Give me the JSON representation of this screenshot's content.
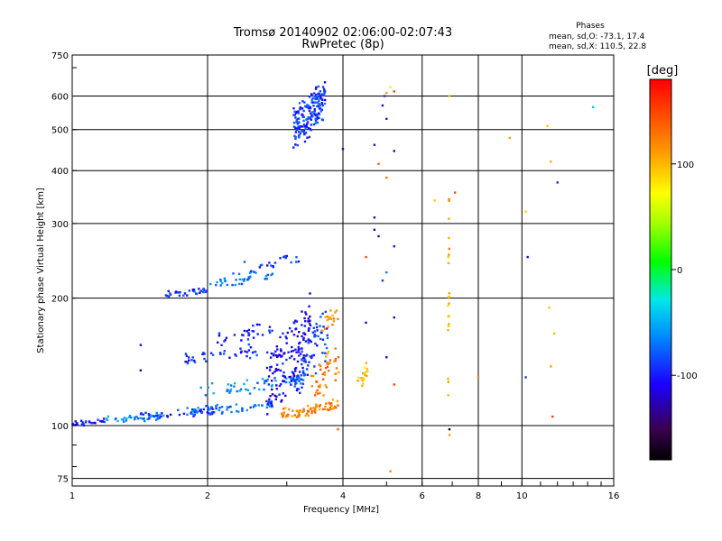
{
  "chart_data": {
    "type": "scatter",
    "title": "Tromsø 20140902 02:06:00-02:07:43",
    "subtitle": "RwPretec (8p)",
    "stats": {
      "title": "Phases",
      "line1": "mean, sd,O: -73.1, 17.4",
      "line2": "mean, sd,X: 110.5, 22.8"
    },
    "xlabel": "Frequency [MHz]",
    "ylabel": "Stationary phase Virtual Height [km]",
    "xscale": "log",
    "yscale": "log",
    "xlim": [
      1,
      16
    ],
    "ylim": [
      72,
      750
    ],
    "xticks": [
      1,
      2,
      4,
      6,
      8,
      10,
      16
    ],
    "yticks": [
      75,
      100,
      200,
      300,
      400,
      500,
      600,
      750
    ],
    "grid": true,
    "colorbar": {
      "label": "[deg]",
      "range": [
        -180,
        180
      ],
      "ticks": [
        100,
        0,
        -100
      ]
    },
    "series": [
      {
        "mode": "O",
        "clusters": [
          {
            "x": [
              1.0,
              1.18
            ],
            "y": [
              100,
              103
            ],
            "n": 28,
            "phase": -95,
            "spread": 0.04
          },
          {
            "x": [
              1.18,
              1.6
            ],
            "y": [
              102,
              107
            ],
            "n": 45,
            "phase": -60,
            "spread": 0.05
          },
          {
            "x": [
              1.4,
              2.1
            ],
            "y": [
              104,
              110
            ],
            "n": 40,
            "phase": -100,
            "spread": 0.05
          },
          {
            "x": [
              1.8,
              2.8
            ],
            "y": [
              106,
              114
            ],
            "n": 55,
            "phase": -75,
            "spread": 0.05
          },
          {
            "x": [
              1.55,
              2.0
            ],
            "y": [
              200,
              212
            ],
            "n": 35,
            "phase": -90,
            "spread": 0.03
          },
          {
            "x": [
              2.0,
              2.8
            ],
            "y": [
              210,
              238
            ],
            "n": 40,
            "phase": -70,
            "spread": 0.03
          },
          {
            "x": [
              2.4,
              3.2
            ],
            "y": [
              230,
              255
            ],
            "n": 20,
            "phase": -95,
            "spread": 0.03
          },
          {
            "x": [
              1.9,
              3.3
            ],
            "y": [
              118,
              132
            ],
            "n": 55,
            "phase": -65,
            "spread": 0.07
          },
          {
            "x": [
              1.75,
              2.6
            ],
            "y": [
              140,
              155
            ],
            "n": 40,
            "phase": -95,
            "spread": 0.06
          },
          {
            "x": [
              2.1,
              2.8
            ],
            "y": [
              155,
              175
            ],
            "n": 30,
            "phase": -105,
            "spread": 0.05
          },
          {
            "x": [
              2.7,
              3.4
            ],
            "y": [
              105,
              205
            ],
            "n": 140,
            "phase": -110,
            "spread": 0.12
          },
          {
            "x": [
              3.1,
              3.7
            ],
            "y": [
              115,
              190
            ],
            "n": 80,
            "phase": -90,
            "spread": 0.12
          },
          {
            "x": [
              3.1,
              3.65
            ],
            "y": [
              460,
              640
            ],
            "n": 170,
            "phase": -90,
            "spread": 0.2
          }
        ]
      },
      {
        "mode": "X",
        "clusters": [
          {
            "x": [
              2.9,
              3.9
            ],
            "y": [
              104,
              114
            ],
            "n": 70,
            "phase": 120,
            "spread": 0.06
          },
          {
            "x": [
              3.4,
              3.95
            ],
            "y": [
              112,
              160
            ],
            "n": 45,
            "phase": 125,
            "spread": 0.1
          },
          {
            "x": [
              3.6,
              3.9
            ],
            "y": [
              160,
              195
            ],
            "n": 18,
            "phase": 115,
            "spread": 0.05
          },
          {
            "x": [
              4.3,
              4.55
            ],
            "y": [
              120,
              140
            ],
            "n": 18,
            "phase": 95,
            "spread": 0.08
          },
          {
            "x": [
              6.85,
              6.9
            ],
            "y": [
              100,
              440
            ],
            "n": 22,
            "phase": 105,
            "spread": 0.02
          }
        ]
      }
    ],
    "points": [
      {
        "x": 1.42,
        "y": 155,
        "phase": -110
      },
      {
        "x": 1.42,
        "y": 135,
        "phase": -140
      },
      {
        "x": 4.0,
        "y": 450,
        "phase": -120
      },
      {
        "x": 4.7,
        "y": 460,
        "phase": -105
      },
      {
        "x": 4.8,
        "y": 415,
        "phase": 140
      },
      {
        "x": 5.0,
        "y": 385,
        "phase": 130
      },
      {
        "x": 5.2,
        "y": 445,
        "phase": -120
      },
      {
        "x": 4.9,
        "y": 570,
        "phase": -110
      },
      {
        "x": 4.95,
        "y": 600,
        "phase": -95
      },
      {
        "x": 5.0,
        "y": 530,
        "phase": -100
      },
      {
        "x": 5.0,
        "y": 610,
        "phase": 110
      },
      {
        "x": 5.1,
        "y": 630,
        "phase": 60
      },
      {
        "x": 5.2,
        "y": 615,
        "phase": 150
      },
      {
        "x": 4.7,
        "y": 310,
        "phase": -110
      },
      {
        "x": 4.7,
        "y": 290,
        "phase": -120
      },
      {
        "x": 4.8,
        "y": 280,
        "phase": -130
      },
      {
        "x": 4.9,
        "y": 220,
        "phase": -90
      },
      {
        "x": 5.0,
        "y": 230,
        "phase": -70
      },
      {
        "x": 5.2,
        "y": 265,
        "phase": -100
      },
      {
        "x": 5.2,
        "y": 180,
        "phase": -130
      },
      {
        "x": 4.5,
        "y": 250,
        "phase": 145
      },
      {
        "x": 4.5,
        "y": 175,
        "phase": -110
      },
      {
        "x": 5.0,
        "y": 145,
        "phase": -120
      },
      {
        "x": 5.1,
        "y": 78,
        "phase": 120
      },
      {
        "x": 5.2,
        "y": 125,
        "phase": 150
      },
      {
        "x": 3.9,
        "y": 98,
        "phase": 140
      },
      {
        "x": 6.4,
        "y": 340,
        "phase": 95
      },
      {
        "x": 6.9,
        "y": 600,
        "phase": 100
      },
      {
        "x": 7.1,
        "y": 355,
        "phase": 145
      },
      {
        "x": 8.0,
        "y": 130,
        "phase": 120
      },
      {
        "x": 9.4,
        "y": 478,
        "phase": 110
      },
      {
        "x": 10.2,
        "y": 320,
        "phase": 90
      },
      {
        "x": 10.3,
        "y": 250,
        "phase": -105
      },
      {
        "x": 10.2,
        "y": 130,
        "phase": -90
      },
      {
        "x": 11.4,
        "y": 510,
        "phase": 95
      },
      {
        "x": 11.6,
        "y": 420,
        "phase": 105
      },
      {
        "x": 11.5,
        "y": 190,
        "phase": 95
      },
      {
        "x": 11.8,
        "y": 165,
        "phase": 100
      },
      {
        "x": 11.6,
        "y": 138,
        "phase": 110
      },
      {
        "x": 11.7,
        "y": 105,
        "phase": 150
      },
      {
        "x": 12.0,
        "y": 375,
        "phase": -95
      },
      {
        "x": 14.4,
        "y": 565,
        "phase": -40
      },
      {
        "x": 6.9,
        "y": 98,
        "phase": -170
      },
      {
        "x": 6.9,
        "y": 95,
        "phase": 110
      }
    ]
  }
}
